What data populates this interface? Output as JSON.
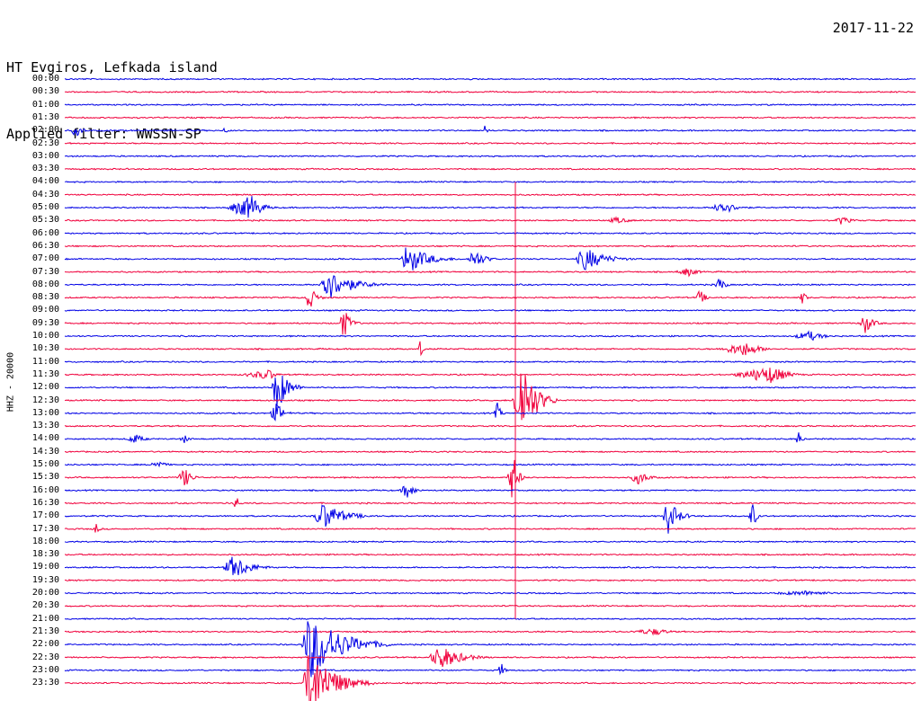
{
  "station": {
    "name": "HT Evgiros, Lefkada island",
    "filter": "Applied filter: WWSSN-SP",
    "date": "2017-11-22",
    "channel": "HHZ - 20000"
  },
  "colors": {
    "blue": "#0000e6",
    "red": "#f0003c",
    "text": "#000000"
  },
  "timelines": [
    "00:00",
    "00:30",
    "01:00",
    "01:30",
    "02:00",
    "02:30",
    "03:00",
    "03:30",
    "04:00",
    "04:30",
    "05:00",
    "05:30",
    "06:00",
    "06:30",
    "07:00",
    "07:30",
    "08:00",
    "08:30",
    "09:00",
    "09:30",
    "10:00",
    "10:30",
    "11:00",
    "11:30",
    "12:00",
    "12:30",
    "13:00",
    "13:30",
    "14:00",
    "14:30",
    "15:00",
    "15:30",
    "16:00",
    "16:30",
    "17:00",
    "17:30",
    "18:00",
    "18:30",
    "19:00",
    "19:30",
    "20:00",
    "20:30",
    "21:00",
    "21:30",
    "22:00",
    "22:30",
    "23:00",
    "23:30"
  ]
}
